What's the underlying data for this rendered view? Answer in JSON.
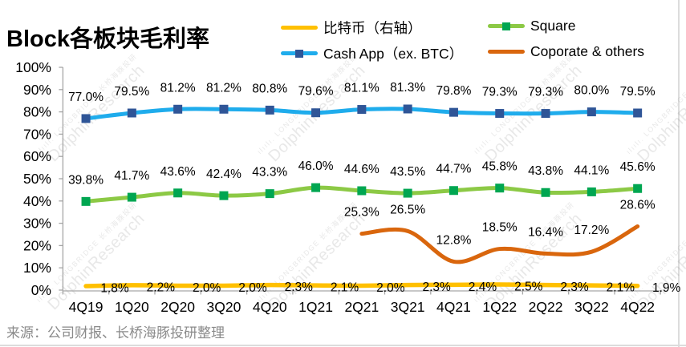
{
  "title": "Block各板块毛利率",
  "source": "来源：公司财报、长桥海豚投研整理",
  "watermark": {
    "bars": "ılıılı.",
    "line1": "LONGBRIDGE 长桥海豚投研",
    "line2": "DolphinResearch"
  },
  "colors": {
    "bitcoin_line": "#FFC000",
    "square_line": "#8CC945",
    "square_marker": "#00A651",
    "cashapp_line": "#1FACEC",
    "cashapp_marker": "#2F5597",
    "corporate_line": "#D9660D",
    "axis": "#A6A6A6",
    "data_label": "#000000",
    "axis_label": "#000000",
    "source_text": "#8A8A8A",
    "frame_border": "#DCDCDC"
  },
  "legend": {
    "items": [
      {
        "id": "bitcoin",
        "label": "比特币（右轴）",
        "col": 0,
        "row": 0
      },
      {
        "id": "square",
        "label": "Square",
        "col": 1,
        "row": 0
      },
      {
        "id": "cashapp",
        "label": "Cash App（ex. BTC）",
        "col": 0,
        "row": 1
      },
      {
        "id": "corporate",
        "label": "Coporate & others",
        "col": 1,
        "row": 1
      }
    ]
  },
  "chart_data": {
    "type": "line",
    "title": "Block各板块毛利率",
    "categories": [
      "4Q19",
      "1Q20",
      "2Q20",
      "3Q20",
      "4Q20",
      "1Q21",
      "2Q21",
      "3Q21",
      "4Q21",
      "1Q22",
      "2Q22",
      "3Q22",
      "4Q22"
    ],
    "y_axis": {
      "min": 0,
      "max": 100,
      "step": 10,
      "tick_suffix": "%"
    },
    "grid": false,
    "legend_position": "top",
    "series": [
      {
        "id": "cashapp",
        "name": "Cash App（ex. BTC）",
        "axis": "left",
        "smooth": true,
        "marker_shape": "square",
        "values": [
          77.0,
          79.5,
          81.2,
          81.2,
          80.8,
          79.6,
          81.1,
          81.3,
          79.8,
          79.3,
          79.3,
          80.0,
          79.5
        ]
      },
      {
        "id": "square",
        "name": "Square",
        "axis": "left",
        "smooth": true,
        "marker_shape": "square",
        "values": [
          39.8,
          41.7,
          43.6,
          42.4,
          43.3,
          46.0,
          44.6,
          43.5,
          44.7,
          45.8,
          43.8,
          44.1,
          45.6
        ]
      },
      {
        "id": "corporate",
        "name": "Coporate & others",
        "axis": "left",
        "smooth": true,
        "marker_shape": null,
        "values": [
          null,
          null,
          null,
          null,
          null,
          null,
          25.3,
          26.5,
          12.8,
          18.5,
          16.4,
          17.2,
          28.6
        ]
      },
      {
        "id": "bitcoin",
        "name": "比特币（右轴）",
        "axis": "right",
        "smooth": true,
        "marker_shape": null,
        "label_offset": "right",
        "values": [
          1.8,
          2.2,
          2.0,
          2.0,
          2.3,
          2.1,
          2.0,
          2.3,
          2.4,
          2.5,
          2.3,
          2.1,
          1.9
        ]
      }
    ]
  }
}
